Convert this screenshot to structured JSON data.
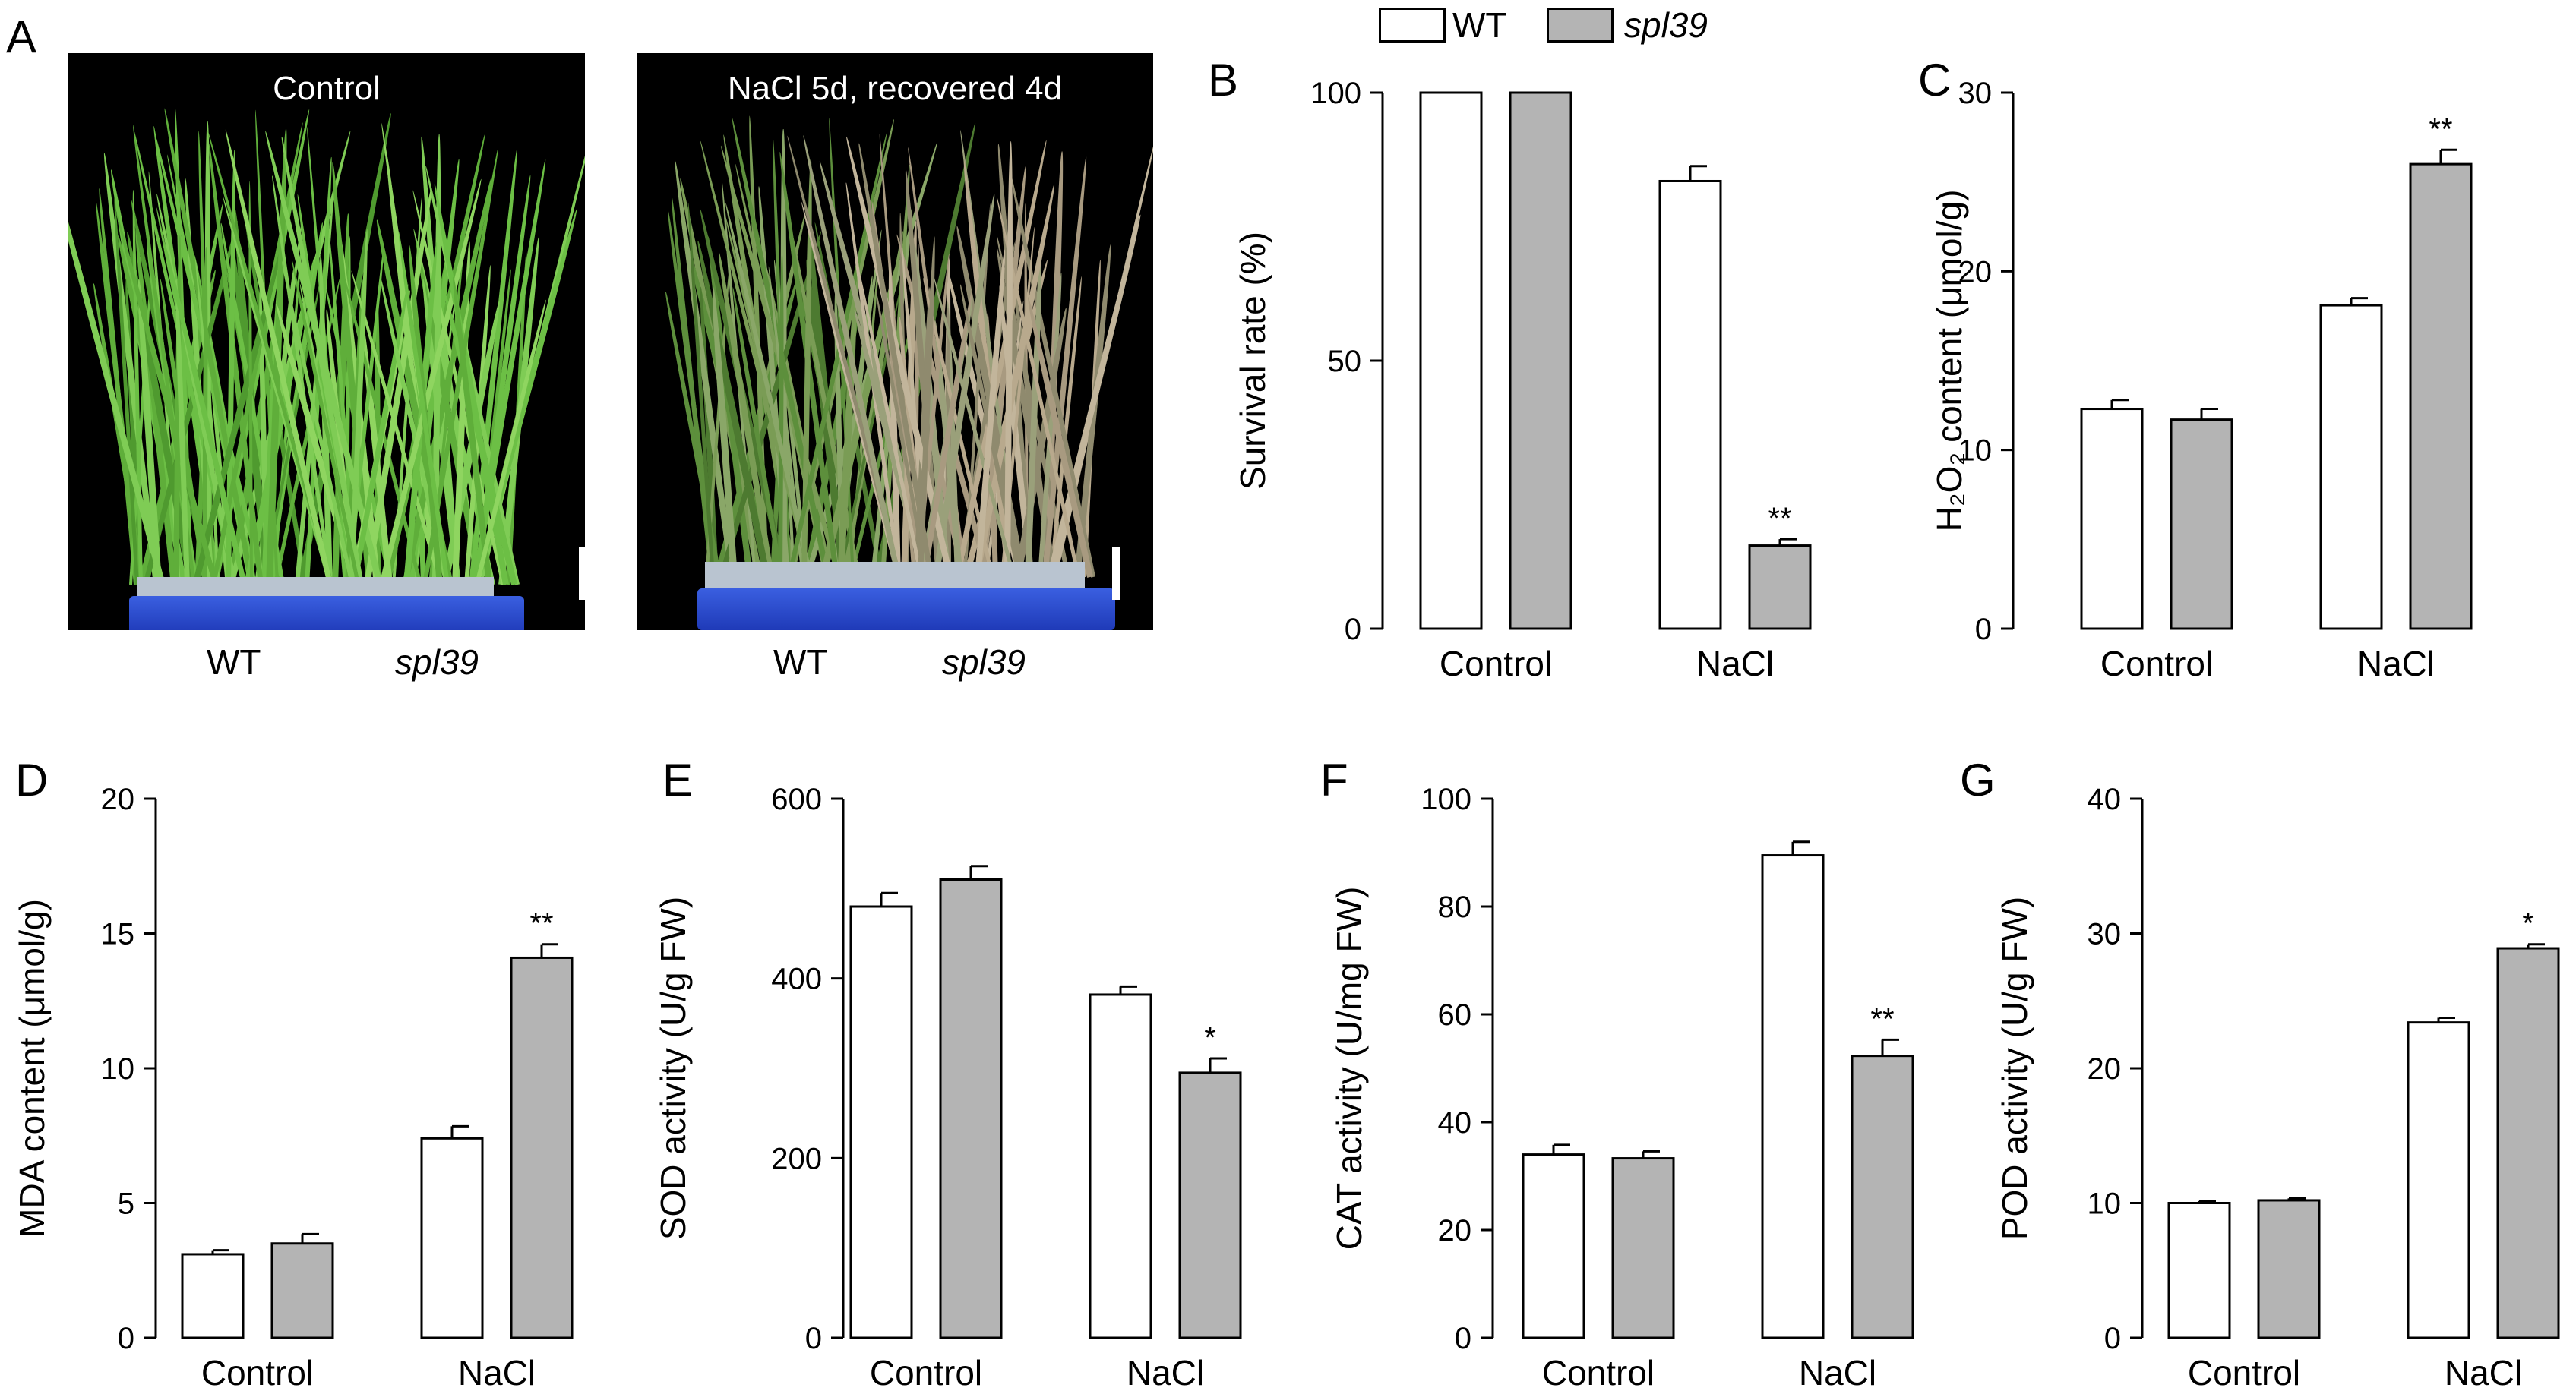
{
  "panel_a": {
    "letter": "A",
    "photo_left": {
      "title": "Control",
      "label_wt": "WT",
      "label_mutant": "spl39"
    },
    "photo_right": {
      "title": "NaCl 5d, recovered 4d",
      "label_wt": "WT",
      "label_mutant": "spl39"
    }
  },
  "legend": {
    "wt": {
      "label": "WT",
      "color": "#ffffff"
    },
    "mutant": {
      "label": "spl39",
      "color": "#b4b4b4"
    }
  },
  "colors": {
    "wt_fill": "#ffffff",
    "mutant_fill": "#b4b4b4",
    "stroke": "#000000"
  },
  "chart_data": [
    {
      "panel": "B",
      "type": "bar",
      "categories": [
        "Control",
        "NaCl"
      ],
      "ylabel": "Survival rate (%)",
      "ylim": [
        0,
        100
      ],
      "yticks": [
        0,
        50,
        100
      ],
      "series": [
        {
          "name": "WT",
          "values": [
            100,
            83.5
          ],
          "errors": [
            0,
            2.8
          ],
          "sig": [
            "",
            ""
          ]
        },
        {
          "name": "spl39",
          "values": [
            100,
            15.5
          ],
          "errors": [
            0,
            1.2
          ],
          "sig": [
            "",
            "**"
          ]
        }
      ]
    },
    {
      "panel": "C",
      "type": "bar",
      "categories": [
        "Control",
        "NaCl"
      ],
      "ylabel": "H₂O₂ content (μmol/g)",
      "ylim": [
        0,
        30
      ],
      "yticks": [
        0,
        10,
        20,
        30
      ],
      "series": [
        {
          "name": "WT",
          "values": [
            12.3,
            18.1
          ],
          "errors": [
            0.5,
            0.4
          ],
          "sig": [
            "",
            ""
          ]
        },
        {
          "name": "spl39",
          "values": [
            11.7,
            26.0
          ],
          "errors": [
            0.6,
            0.8
          ],
          "sig": [
            "",
            "**"
          ]
        }
      ]
    },
    {
      "panel": "D",
      "type": "bar",
      "categories": [
        "Control",
        "NaCl"
      ],
      "ylabel": "MDA content (μmol/g)",
      "ylim": [
        0,
        20
      ],
      "yticks": [
        0,
        5,
        10,
        15,
        20
      ],
      "series": [
        {
          "name": "WT",
          "values": [
            3.1,
            7.4
          ],
          "errors": [
            0.15,
            0.45
          ],
          "sig": [
            "",
            ""
          ]
        },
        {
          "name": "spl39",
          "values": [
            3.5,
            14.1
          ],
          "errors": [
            0.35,
            0.5
          ],
          "sig": [
            "",
            "**"
          ]
        }
      ]
    },
    {
      "panel": "E",
      "type": "bar",
      "categories": [
        "Control",
        "NaCl"
      ],
      "ylabel": "SOD activity (U/g FW)",
      "ylim": [
        0,
        600
      ],
      "yticks": [
        0,
        200,
        400,
        600
      ],
      "series": [
        {
          "name": "WT",
          "values": [
            480,
            382
          ],
          "errors": [
            15,
            9
          ],
          "sig": [
            "",
            ""
          ]
        },
        {
          "name": "spl39",
          "values": [
            510,
            295
          ],
          "errors": [
            15,
            16
          ],
          "sig": [
            "",
            "*"
          ]
        }
      ]
    },
    {
      "panel": "F",
      "type": "bar",
      "categories": [
        "Control",
        "NaCl"
      ],
      "ylabel": "CAT activity (U/mg FW)",
      "ylim": [
        0,
        100
      ],
      "yticks": [
        0,
        20,
        40,
        60,
        80,
        100
      ],
      "series": [
        {
          "name": "WT",
          "values": [
            34,
            89.5
          ],
          "errors": [
            1.8,
            2.5
          ],
          "sig": [
            "",
            ""
          ]
        },
        {
          "name": "spl39",
          "values": [
            33.3,
            52.3
          ],
          "errors": [
            1.3,
            3.0
          ],
          "sig": [
            "",
            "**"
          ]
        }
      ]
    },
    {
      "panel": "G",
      "type": "bar",
      "categories": [
        "Control",
        "NaCl"
      ],
      "ylabel": "POD activity (U/g FW)",
      "ylim": [
        0,
        40
      ],
      "yticks": [
        0,
        10,
        20,
        30,
        40
      ],
      "series": [
        {
          "name": "WT",
          "values": [
            10.0,
            23.4
          ],
          "errors": [
            0.15,
            0.35
          ],
          "sig": [
            "",
            ""
          ]
        },
        {
          "name": "spl39",
          "values": [
            10.2,
            28.9
          ],
          "errors": [
            0.15,
            0.3
          ],
          "sig": [
            "",
            "*"
          ]
        }
      ]
    }
  ]
}
